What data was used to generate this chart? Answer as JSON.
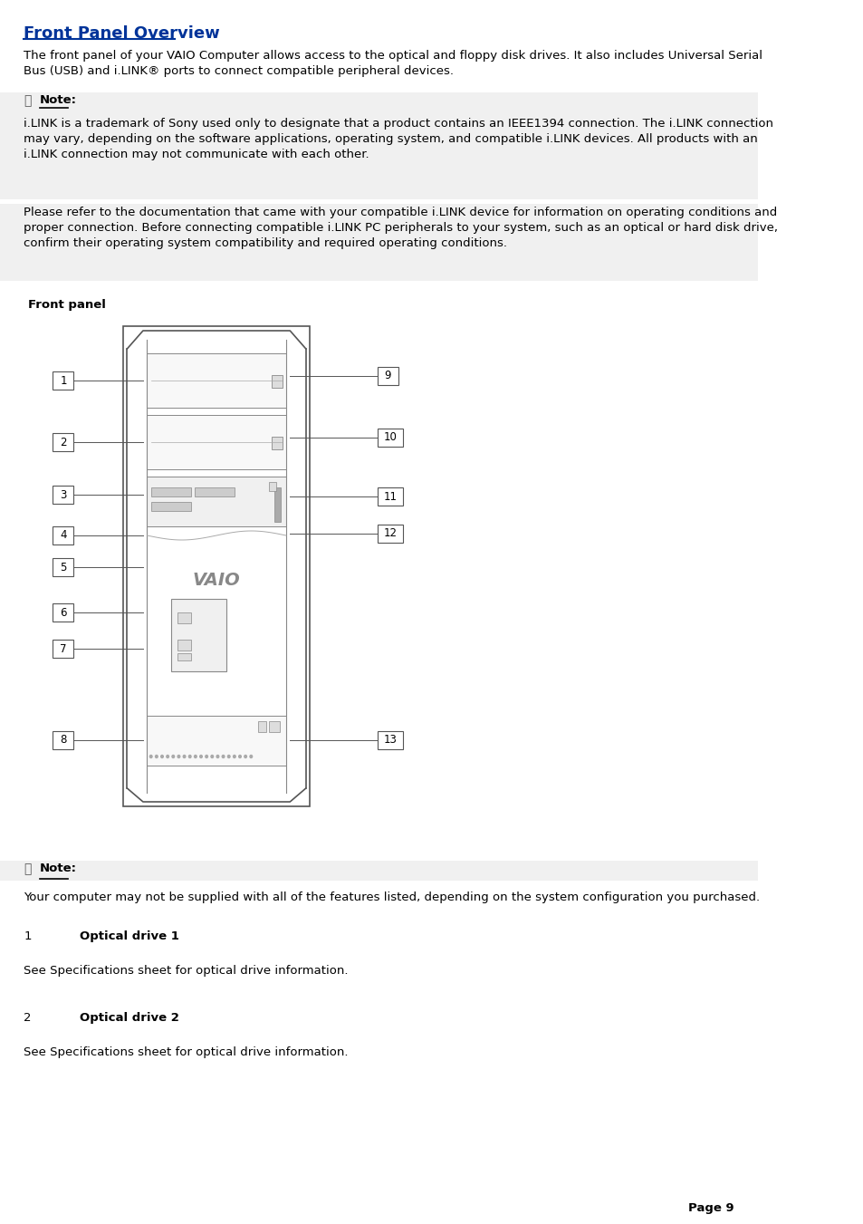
{
  "title": "Front Panel Overview",
  "title_color": "#003399",
  "bg_color": "#ffffff",
  "note_bg": "#f0f0f0",
  "body_text_color": "#000000",
  "font_size_body": 9.5,
  "font_size_title": 13,
  "font_size_small": 8.5,
  "paragraph1": "The front panel of your VAIO Computer allows access to the optical and floppy disk drives. It also includes Universal Serial\nBus (USB) and i.LINK® ports to connect compatible peripheral devices.",
  "note_icon": "⎘",
  "note_label": "Note:",
  "note_text1": "i.LINK is a trademark of Sony used only to designate that a product contains an IEEE1394 connection. The i.LINK connection\nmay vary, depending on the software applications, operating system, and compatible i.LINK devices. All products with an\ni.LINK connection may not communicate with each other.",
  "note_text2": "Please refer to the documentation that came with your compatible i.LINK device for information on operating conditions and\nproper connection. Before connecting compatible i.LINK PC peripherals to your system, such as an optical or hard disk drive,\nconfirm their operating system compatibility and required operating conditions.",
  "section_label": "Front panel",
  "note2_label": "Note:",
  "note2_text": "Your computer may not be supplied with all of the features listed, depending on the system configuration you purchased.",
  "item1_num": "1",
  "item1_name": "Optical drive 1",
  "item1_desc": "See Specifications sheet for optical drive information.",
  "item2_num": "2",
  "item2_name": "Optical drive 2",
  "item2_desc": "See Specifications sheet for optical drive information.",
  "page_label": "Page 9"
}
